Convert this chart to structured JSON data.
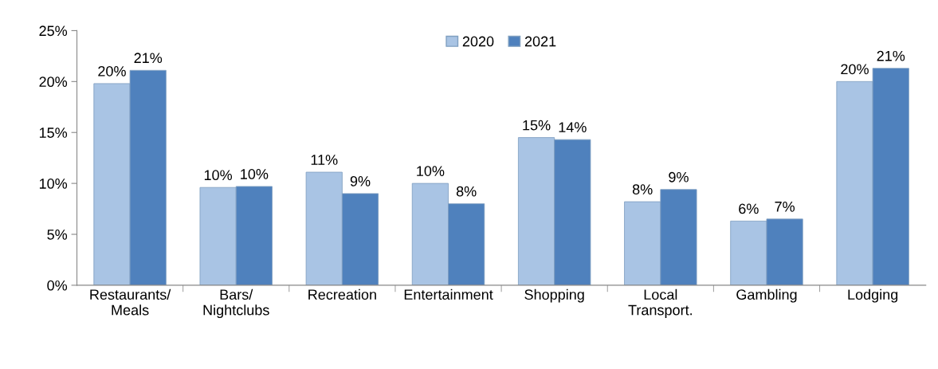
{
  "chart_data": {
    "type": "bar",
    "categories": [
      "Restaurants/\nMeals",
      "Bars/\nNightclubs",
      "Recreation",
      "Entertainment",
      "Shopping",
      "Local\nTransport.",
      "Gambling",
      "Lodging"
    ],
    "series": [
      {
        "name": "2020",
        "color": "#a9c4e4",
        "values": [
          19.8,
          9.6,
          11.1,
          10.0,
          14.5,
          8.2,
          6.3,
          20.0
        ],
        "value_labels": [
          "20%",
          "10%",
          "11%",
          "10%",
          "15%",
          "8%",
          "6%",
          "20%"
        ]
      },
      {
        "name": "2021",
        "color": "#4f81bd",
        "values": [
          21.1,
          9.7,
          9.0,
          8.0,
          14.3,
          9.4,
          6.5,
          21.3
        ],
        "value_labels": [
          "21%",
          "10%",
          "9%",
          "8%",
          "14%",
          "9%",
          "7%",
          "21%"
        ]
      }
    ],
    "ylim": [
      0,
      25
    ],
    "yticks": [
      {
        "value": 0,
        "label": "0%"
      },
      {
        "value": 5,
        "label": "5%"
      },
      {
        "value": 10,
        "label": "10%"
      },
      {
        "value": 15,
        "label": "15%"
      },
      {
        "value": 20,
        "label": "20%"
      },
      {
        "value": 25,
        "label": "25%"
      }
    ],
    "grid": false,
    "legend": "top"
  }
}
